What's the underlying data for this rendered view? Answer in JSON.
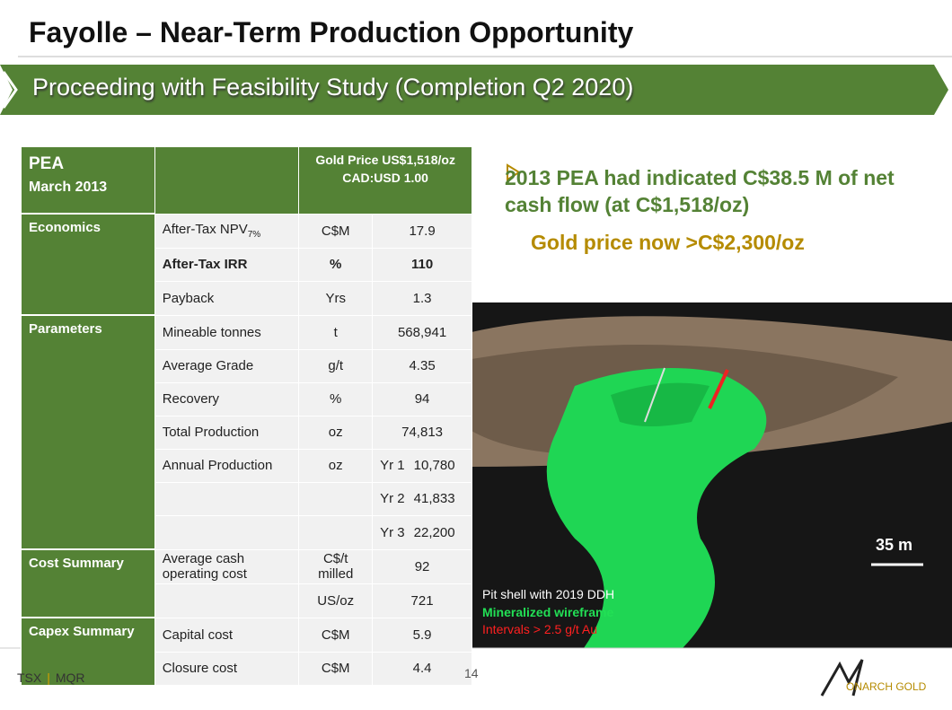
{
  "title": "Fayolle – Near-Term Production Opportunity",
  "banner": "Proceeding with Feasibility Study (Completion Q2 2020)",
  "table": {
    "header": {
      "pea": "PEA",
      "date": "March 2013",
      "price": "Gold Price US$1,518/oz",
      "fx": "CAD:USD 1.00"
    },
    "rows": [
      {
        "section": "Economics",
        "item": "After-Tax NPV",
        "sub": "7%",
        "unit": "C$M",
        "value": "17.9"
      },
      {
        "item": "After-Tax IRR",
        "unit": "%",
        "value": "110",
        "bold": true
      },
      {
        "item": "Payback",
        "unit": "Yrs",
        "value": "1.3"
      },
      {
        "section": "Parameters",
        "item": "Mineable tonnes",
        "unit": "t",
        "value": "568,941"
      },
      {
        "item": "Average Grade",
        "unit": "g/t",
        "value": "4.35"
      },
      {
        "item": "Recovery",
        "unit": "%",
        "value": "94"
      },
      {
        "item": "Total Production",
        "unit": "oz",
        "value": "74,813"
      },
      {
        "item": "Annual Production",
        "unit": "oz",
        "year": "Yr 1",
        "value": "10,780"
      },
      {
        "year": "Yr 2",
        "value": "41,833"
      },
      {
        "year": "Yr 3",
        "value": "22,200"
      },
      {
        "section": "Cost Summary",
        "item": "Average cash operating cost",
        "unit": "C$/t milled",
        "value": "92"
      },
      {
        "unit": "US/oz",
        "value": "721"
      },
      {
        "section": "Capex Summary",
        "item": "Capital cost",
        "unit": "C$M",
        "value": "5.9"
      },
      {
        "item": "Closure cost",
        "unit": "C$M",
        "value": "4.4"
      }
    ]
  },
  "bullet": "2013 PEA had indicated C$38.5 M of net cash flow (at C$1,518/oz)",
  "gold_note": "Gold price now >C$2,300/oz",
  "image": {
    "scale": "35 m",
    "legend": [
      "Pit shell with 2019 DDH",
      "Mineralized wireframe",
      "Intervals > 2.5 g/t Au"
    ]
  },
  "footer": {
    "exchange": "TSX",
    "ticker": "MQR",
    "page": "14",
    "logo": "ONARCH GOLD"
  }
}
